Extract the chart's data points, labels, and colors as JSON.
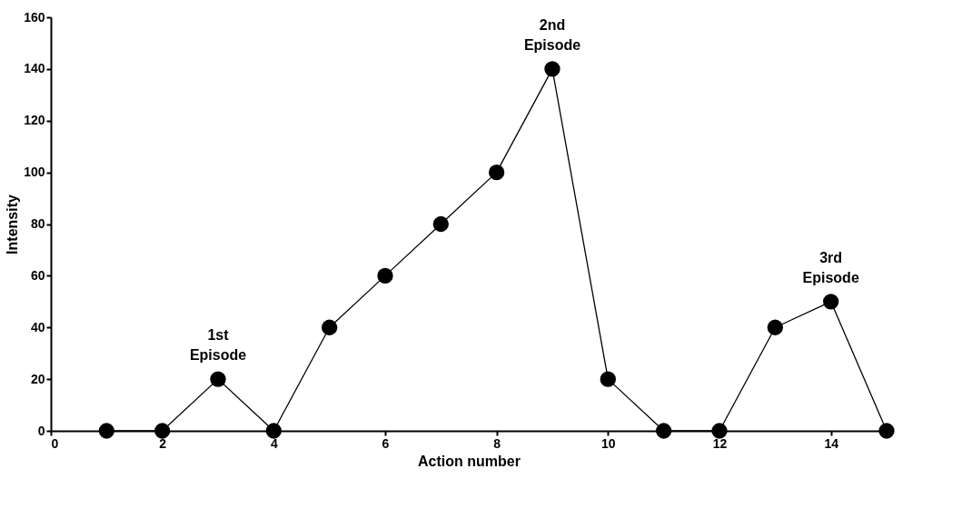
{
  "chart_data": {
    "type": "line",
    "xlabel": "Action number",
    "ylabel": "Intensity",
    "x": [
      1,
      2,
      3,
      4,
      5,
      6,
      7,
      8,
      9,
      10,
      11,
      12,
      13,
      14,
      15
    ],
    "series": [
      {
        "color": "#000000",
        "values": [
          0,
          0,
          20,
          0,
          40,
          60,
          80,
          100,
          140,
          20,
          0,
          0,
          40,
          50,
          0
        ]
      }
    ],
    "xlim": [
      0,
      15
    ],
    "xticks": [
      0,
      2,
      4,
      6,
      8,
      10,
      12,
      14
    ],
    "ylim": [
      0,
      160
    ],
    "yticks": [
      0,
      20,
      40,
      60,
      80,
      100,
      120,
      140,
      160
    ],
    "grid": false,
    "marker": "circle",
    "line_style": "solid",
    "annotations": [
      {
        "text": "1st Episode",
        "x": 3,
        "y": 20
      },
      {
        "text": "2nd Episode",
        "x": 9,
        "y": 140
      },
      {
        "text": "3rd Episode",
        "x": 14,
        "y": 50
      }
    ]
  }
}
